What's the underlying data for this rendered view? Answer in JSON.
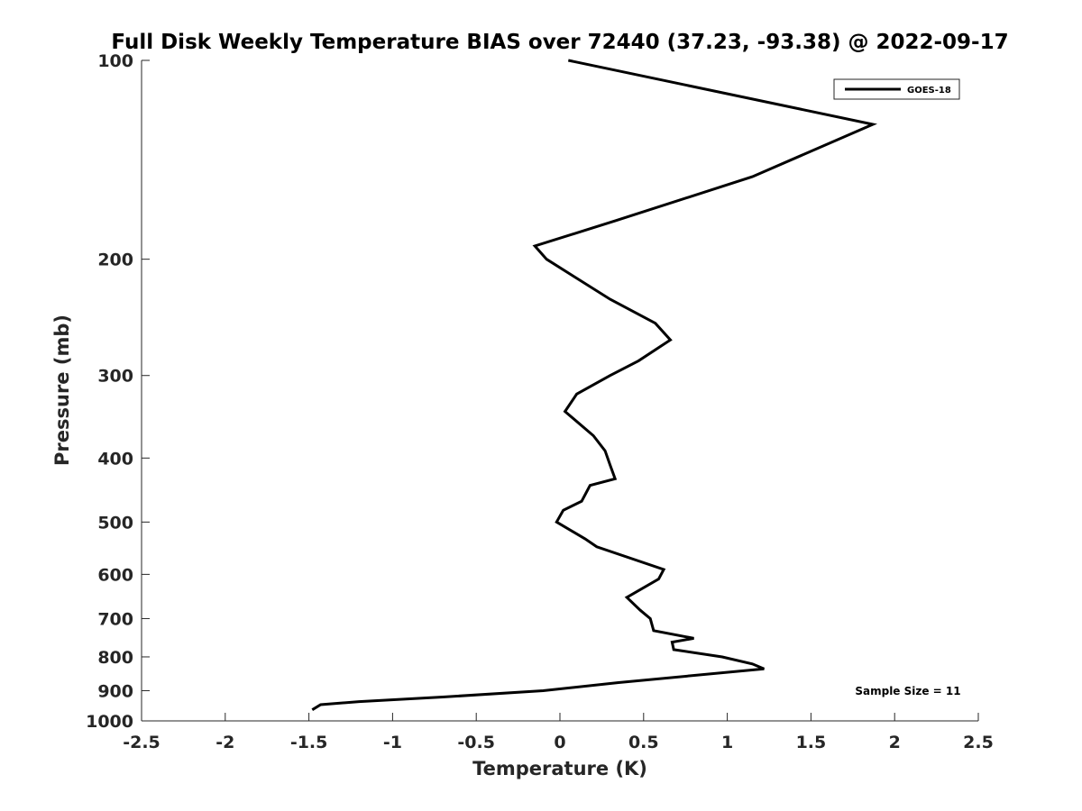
{
  "chart_data": {
    "type": "line",
    "title": "Full Disk Weekly Temperature BIAS over 72440 (37.23, -93.38) @ 2022-09-17",
    "xlabel": "Temperature (K)",
    "ylabel": "Pressure (mb)",
    "xlim": [
      -2.5,
      2.5
    ],
    "ylim": [
      100,
      1000
    ],
    "y_scale": "log",
    "y_reversed": true,
    "grid": false,
    "legend_position": "top-right",
    "line_color": "#000000",
    "x_ticks": [
      "-2.5",
      "-2",
      "-1.5",
      "-1",
      "-0.5",
      "0",
      "0.5",
      "1",
      "1.5",
      "2",
      "2.5"
    ],
    "x_tick_values": [
      -2.5,
      -2,
      -1.5,
      -1,
      -0.5,
      0,
      0.5,
      1,
      1.5,
      2,
      2.5
    ],
    "y_ticks": [
      "100",
      "200",
      "300",
      "400",
      "500",
      "600",
      "700",
      "800",
      "900",
      "1000"
    ],
    "y_tick_values": [
      100,
      200,
      300,
      400,
      500,
      600,
      700,
      800,
      900,
      1000
    ],
    "series": [
      {
        "name": "GOES-18",
        "points": [
          [
            0.05,
            100
          ],
          [
            1.87,
            125
          ],
          [
            1.15,
            150
          ],
          [
            0.33,
            175
          ],
          [
            -0.15,
            191
          ],
          [
            -0.08,
            200
          ],
          [
            0.3,
            230
          ],
          [
            0.57,
            250
          ],
          [
            0.66,
            265
          ],
          [
            0.47,
            285
          ],
          [
            0.3,
            300
          ],
          [
            0.1,
            320
          ],
          [
            0.03,
            340
          ],
          [
            0.2,
            370
          ],
          [
            0.27,
            390
          ],
          [
            0.3,
            410
          ],
          [
            0.33,
            430
          ],
          [
            0.18,
            440
          ],
          [
            0.13,
            465
          ],
          [
            0.02,
            480
          ],
          [
            -0.02,
            500
          ],
          [
            0.15,
            530
          ],
          [
            0.22,
            545
          ],
          [
            0.62,
            590
          ],
          [
            0.59,
            610
          ],
          [
            0.4,
            650
          ],
          [
            0.48,
            680
          ],
          [
            0.54,
            700
          ],
          [
            0.56,
            730
          ],
          [
            0.8,
            750
          ],
          [
            0.67,
            760
          ],
          [
            0.68,
            780
          ],
          [
            0.97,
            800
          ],
          [
            1.15,
            820
          ],
          [
            1.22,
            834
          ],
          [
            0.35,
            875
          ],
          [
            -0.1,
            900
          ],
          [
            -0.7,
            920
          ],
          [
            -1.2,
            935
          ],
          [
            -1.43,
            945
          ],
          [
            -1.48,
            962
          ]
        ]
      }
    ],
    "annotation": "Sample Size = 11"
  }
}
